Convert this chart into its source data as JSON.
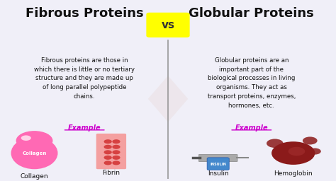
{
  "title_left": "Fibrous Proteins",
  "title_right": "Globular Proteins",
  "vs_text": "vs",
  "vs_bg": "#FFFF00",
  "left_body": "Fibrous proteins are those in\nwhich there is little or no tertiary\nstructure and they are made up\nof long parallel polypeptide\nchains.",
  "right_body": "Globular proteins are an\nimportant part of the\nbiological processes in living\norganisms. They act as\ntransport proteins, enzymes,\nhormones, etc.",
  "example_label": "Example",
  "example_color": "#CC00CC",
  "left_examples": [
    "Collagen",
    "Fibrin"
  ],
  "right_examples": [
    "Insulin",
    "Hemoglobin"
  ],
  "bg_color": "#F0EFF8",
  "title_color": "#111111",
  "body_color": "#111111",
  "divider_color": "#999999",
  "figsize": [
    4.74,
    2.56
  ],
  "dpi": 100
}
